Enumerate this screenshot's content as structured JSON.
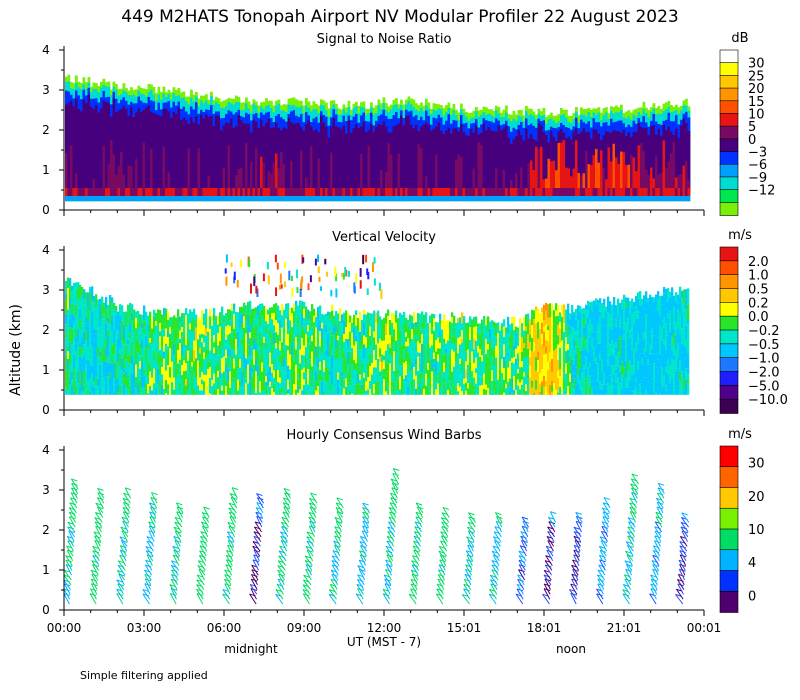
{
  "figure": {
    "title": "449 M2HATS Tonopah Airport NV Modular Profiler 22 August 2023",
    "ylabel": "Altitude (km)",
    "xlabel": "UT  (MST - 7)",
    "midnight_label": "midnight",
    "noon_label": "noon",
    "footnote": "Simple filtering applied"
  },
  "chart_data": [
    {
      "type": "heatmap",
      "title": "Signal to Noise Ratio",
      "xlabel": "UT  (MST - 7)",
      "ylabel": "Altitude (km)",
      "x_range_hours": [
        0,
        24
      ],
      "ylim": [
        0,
        4
      ],
      "yticks": [
        "0",
        "1",
        "2",
        "3",
        "4"
      ],
      "colorbar": {
        "unit": "dB",
        "labels": [
          "30",
          "25",
          "20",
          "15",
          "10",
          "5",
          "0",
          "−3",
          "−6",
          "−9",
          "−12"
        ],
        "colors": [
          "#ffffff",
          "#ffff00",
          "#ffc800",
          "#ff9600",
          "#ff5000",
          "#e61414",
          "#780a64",
          "#46007d",
          "#0032ff",
          "#00a0ff",
          "#00dcd2",
          "#00e650",
          "#78f00a"
        ]
      },
      "profile_top_km": [
        3.3,
        3.2,
        3.1,
        3.05,
        3.0,
        2.9,
        2.8,
        2.75,
        2.7,
        2.7,
        2.65,
        2.6,
        2.7,
        2.75,
        2.6,
        2.55,
        2.5,
        2.5,
        2.45,
        2.45,
        2.5,
        2.55,
        2.6,
        2.65,
        2.7
      ],
      "dominant_snr_db": [
        3,
        2,
        4,
        2,
        1,
        0,
        2,
        4,
        6,
        3,
        1,
        4,
        2,
        1,
        0,
        2,
        4,
        3,
        13,
        12,
        11,
        12,
        8,
        6,
        4
      ]
    },
    {
      "type": "heatmap",
      "title": "Vertical Velocity",
      "xlabel": "UT  (MST - 7)",
      "ylabel": "Altitude (km)",
      "x_range_hours": [
        0,
        24
      ],
      "ylim": [
        0,
        4
      ],
      "yticks": [
        "0",
        "1",
        "2",
        "3",
        "4"
      ],
      "colorbar": {
        "unit": "m/s",
        "labels": [
          "2.0",
          "1.0",
          "0.5",
          "0.2",
          "0.0",
          "−0.2",
          "−0.5",
          "−1.0",
          "−2.0",
          "−5.0",
          "−10.0"
        ],
        "colors": [
          "#e61414",
          "#ff5000",
          "#ff9600",
          "#ffc800",
          "#ffff00",
          "#28e628",
          "#00e6c8",
          "#00c8ff",
          "#1e78ff",
          "#1e1eff",
          "#50008c",
          "#3c0050"
        ]
      },
      "profile_top_km": [
        3.2,
        3.0,
        2.6,
        2.5,
        2.4,
        2.4,
        2.5,
        2.6,
        2.6,
        2.6,
        2.5,
        2.4,
        2.4,
        2.35,
        2.3,
        2.3,
        2.2,
        2.2,
        2.6,
        2.5,
        2.7,
        2.8,
        2.9,
        3.0,
        3.1
      ],
      "dominant_w_ms": [
        -0.3,
        -0.5,
        -0.4,
        -0.3,
        -0.2,
        -0.1,
        -0.2,
        -0.3,
        -0.2,
        -0.2,
        -0.3,
        -0.2,
        -0.1,
        -0.2,
        -0.2,
        -0.1,
        -0.2,
        -0.2,
        0.4,
        -0.3,
        -0.6,
        -0.5,
        -0.7,
        -0.5,
        -0.4
      ]
    },
    {
      "type": "scatter",
      "title": "Hourly Consensus Wind Barbs",
      "xlabel": "UT  (MST - 7)",
      "ylabel": "Altitude (km)",
      "x_range_hours": [
        0,
        24
      ],
      "ylim": [
        0,
        4
      ],
      "yticks": [
        "0",
        "1",
        "2",
        "3",
        "4"
      ],
      "colorbar": {
        "unit": "m/s",
        "labels": [
          "30",
          "20",
          "10",
          "4",
          "0"
        ],
        "colors": [
          "#ff0000",
          "#ff6400",
          "#ffc800",
          "#78f000",
          "#00dc64",
          "#00b4ff",
          "#0032ff",
          "#50006e"
        ]
      },
      "hours": [
        0.3,
        1.3,
        2.3,
        3.3,
        4.3,
        5.3,
        6.3,
        7.3,
        8.3,
        9.3,
        10.3,
        11.3,
        12.3,
        13.3,
        14.3,
        15.3,
        16.3,
        17.3,
        18.3,
        19.3,
        20.3,
        21.3,
        22.3,
        23.3
      ],
      "top_km": [
        3.1,
        2.9,
        2.8,
        2.7,
        2.5,
        2.4,
        2.9,
        2.7,
        2.9,
        2.7,
        2.6,
        2.5,
        3.3,
        2.5,
        2.4,
        2.3,
        2.3,
        2.1,
        2.3,
        2.3,
        2.6,
        3.2,
        3.0,
        2.3
      ],
      "speed_ms": [
        8,
        9,
        8,
        7,
        9,
        10,
        9,
        3,
        8,
        9,
        8,
        7,
        8,
        9,
        9,
        8,
        7,
        4,
        3,
        3,
        5,
        7,
        6,
        3
      ]
    }
  ],
  "time_ticks": [
    "00:00",
    "03:00",
    "06:00",
    "09:00",
    "12:00",
    "15:01",
    "18:01",
    "21:01",
    "00:01"
  ]
}
